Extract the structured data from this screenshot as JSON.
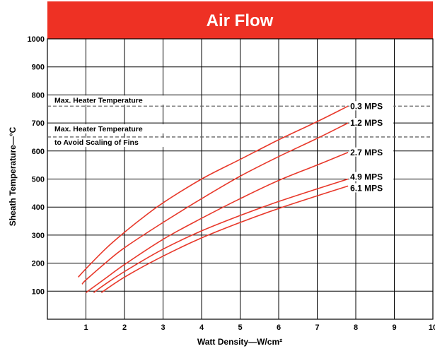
{
  "chart_data": {
    "type": "line",
    "title": "Air Flow",
    "xlabel": "Watt Density—W/cm²",
    "ylabel": "Sheath Temperature—°C",
    "xlim": [
      0,
      10
    ],
    "ylim": [
      0,
      1000
    ],
    "x_ticks": [
      1,
      2,
      3,
      4,
      5,
      6,
      7,
      8,
      9,
      10
    ],
    "y_ticks": [
      100,
      200,
      300,
      400,
      500,
      600,
      700,
      800,
      900,
      1000
    ],
    "grid": true,
    "colors": {
      "banner": "#ee3124",
      "series": "#e8392b",
      "grid": "#000000",
      "reference": "#666666"
    },
    "reference_lines": [
      {
        "y": 760,
        "label": "Max. Heater Temperature"
      },
      {
        "y": 650,
        "label": "Max. Heater Temperature",
        "label2": "to Avoid Scaling of Fins"
      }
    ],
    "series": [
      {
        "name": "0.3 MPS",
        "x": [
          0.8,
          1.0,
          1.5,
          2.0,
          2.5,
          3.0,
          4.0,
          5.0,
          6.0,
          7.0,
          7.8
        ],
        "y": [
          150,
          180,
          250,
          310,
          365,
          415,
          500,
          570,
          640,
          705,
          760
        ]
      },
      {
        "name": "1.2 MPS",
        "x": [
          0.9,
          1.0,
          1.5,
          2.0,
          3.0,
          4.0,
          5.0,
          6.0,
          7.0,
          7.8
        ],
        "y": [
          125,
          140,
          200,
          255,
          345,
          430,
          510,
          580,
          645,
          700
        ]
      },
      {
        "name": "2.7 MPS",
        "x": [
          1.0,
          1.5,
          2.0,
          3.0,
          4.0,
          5.0,
          6.0,
          7.0,
          7.8
        ],
        "y": [
          95,
          145,
          195,
          285,
          360,
          430,
          495,
          550,
          595
        ]
      },
      {
        "name": "4.9 MPS",
        "x": [
          1.2,
          1.5,
          2.0,
          3.0,
          4.0,
          5.0,
          6.0,
          7.0,
          7.8
        ],
        "y": [
          95,
          125,
          170,
          250,
          315,
          370,
          420,
          465,
          500
        ]
      },
      {
        "name": "6.1 MPS",
        "x": [
          1.4,
          2.0,
          3.0,
          4.0,
          5.0,
          6.0,
          7.0,
          7.8
        ],
        "y": [
          95,
          150,
          225,
          290,
          345,
          395,
          440,
          475
        ]
      }
    ]
  }
}
